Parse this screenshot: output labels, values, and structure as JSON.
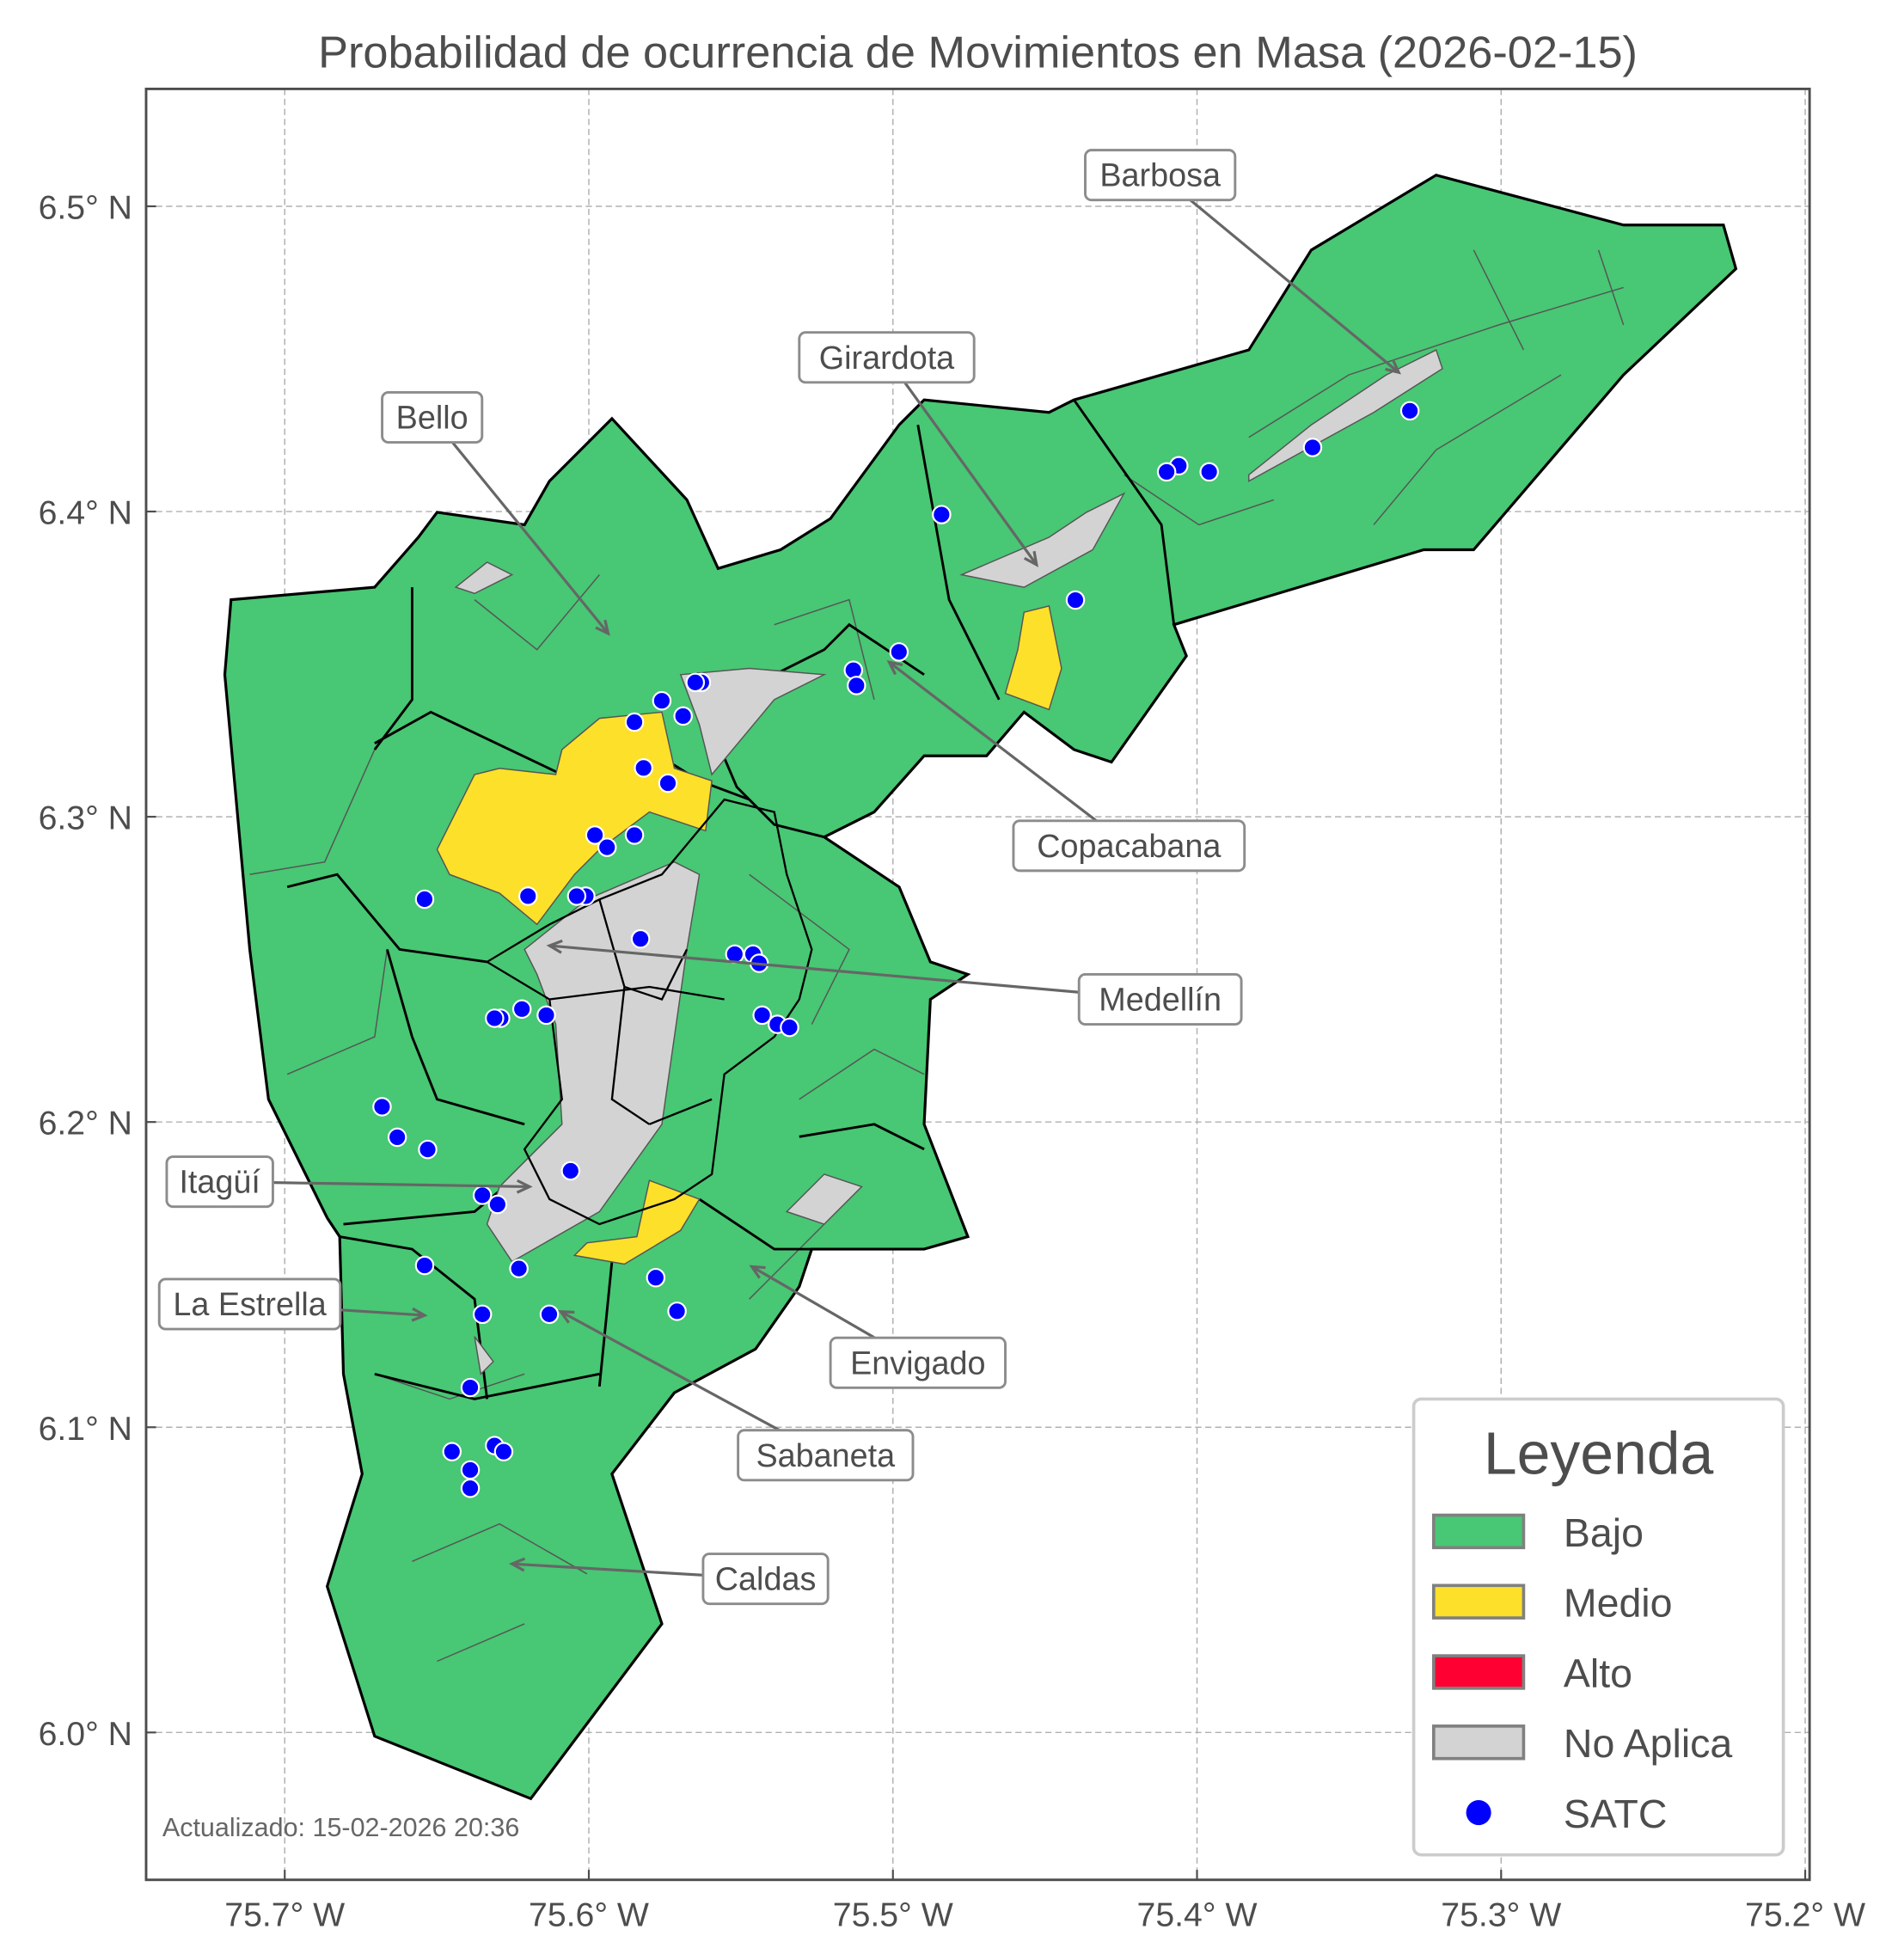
{
  "title": "Probabilidad de ocurrencia de Movimientos en Masa (2026-02-15)",
  "footer": "Actualizado: 15-02-2026 20:36",
  "axes": {
    "x_ticks": [
      {
        "value": -75.7,
        "label": "75.7° W"
      },
      {
        "value": -75.6,
        "label": "75.6° W"
      },
      {
        "value": -75.5,
        "label": "75.5° W"
      },
      {
        "value": -75.4,
        "label": "75.4° W"
      },
      {
        "value": -75.3,
        "label": "75.3° W"
      },
      {
        "value": -75.2,
        "label": "75.2° W"
      }
    ],
    "y_ticks": [
      {
        "value": 6.5,
        "label": "6.5° N"
      },
      {
        "value": 6.4,
        "label": "6.4° N"
      },
      {
        "value": 6.3,
        "label": "6.3° N"
      },
      {
        "value": 6.2,
        "label": "6.2° N"
      },
      {
        "value": 6.1,
        "label": "6.1° N"
      },
      {
        "value": 6.0,
        "label": "6.0° N"
      }
    ],
    "grid": true
  },
  "colors": {
    "bajo": "#48c774",
    "medio": "#fde02a",
    "alto": "#ff0033",
    "no_aplica": "#d3d3d3",
    "satc": "#0000ff"
  },
  "legend": {
    "title": "Leyenda",
    "placement": "lower-right",
    "items": [
      {
        "label": "Bajo",
        "color": "#48c774",
        "kind": "patch"
      },
      {
        "label": "Medio",
        "color": "#fde02a",
        "kind": "patch"
      },
      {
        "label": "Alto",
        "color": "#ff0033",
        "kind": "patch"
      },
      {
        "label": "No Aplica",
        "color": "#d3d3d3",
        "kind": "patch"
      },
      {
        "label": "SATC",
        "color": "#0000ff",
        "kind": "point"
      }
    ]
  },
  "municipalities": [
    "Barbosa",
    "Girardota",
    "Bello",
    "Copacabana",
    "Medellín",
    "Itagüí",
    "La Estrella",
    "Envigado",
    "Sabaneta",
    "Caldas"
  ],
  "satc_points": [
    [
      -75.33,
      6.433
    ],
    [
      -75.362,
      6.421
    ],
    [
      -75.396,
      6.413
    ],
    [
      -75.406,
      6.415
    ],
    [
      -75.41,
      6.413
    ],
    [
      -75.484,
      6.399
    ],
    [
      -75.44,
      6.371
    ],
    [
      -75.498,
      6.354
    ],
    [
      -75.513,
      6.348
    ],
    [
      -75.512,
      6.343
    ],
    [
      -75.563,
      6.344
    ],
    [
      -75.565,
      6.344
    ],
    [
      -75.569,
      6.333
    ],
    [
      -75.576,
      6.338
    ],
    [
      -75.585,
      6.331
    ],
    [
      -75.582,
      6.316
    ],
    [
      -75.574,
      6.311
    ],
    [
      -75.598,
      6.294
    ],
    [
      -75.585,
      6.294
    ],
    [
      -75.594,
      6.29
    ],
    [
      -75.654,
      6.273
    ],
    [
      -75.62,
      6.274
    ],
    [
      -75.601,
      6.274
    ],
    [
      -75.604,
      6.274
    ],
    [
      -75.583,
      6.26
    ],
    [
      -75.552,
      6.255
    ],
    [
      -75.546,
      6.255
    ],
    [
      -75.544,
      6.252
    ],
    [
      -75.543,
      6.235
    ],
    [
      -75.538,
      6.232
    ],
    [
      -75.534,
      6.231
    ],
    [
      -75.622,
      6.237
    ],
    [
      -75.614,
      6.235
    ],
    [
      -75.629,
      6.234
    ],
    [
      -75.631,
      6.234
    ],
    [
      -75.668,
      6.205
    ],
    [
      -75.663,
      6.195
    ],
    [
      -75.653,
      6.191
    ],
    [
      -75.606,
      6.184
    ],
    [
      -75.635,
      6.176
    ],
    [
      -75.63,
      6.173
    ],
    [
      -75.654,
      6.153
    ],
    [
      -75.623,
      6.152
    ],
    [
      -75.578,
      6.149
    ],
    [
      -75.571,
      6.138
    ],
    [
      -75.613,
      6.137
    ],
    [
      -75.635,
      6.137
    ],
    [
      -75.639,
      6.113
    ],
    [
      -75.645,
      6.092
    ],
    [
      -75.639,
      6.086
    ],
    [
      -75.639,
      6.08
    ],
    [
      -75.631,
      6.094
    ],
    [
      -75.628,
      6.092
    ]
  ]
}
